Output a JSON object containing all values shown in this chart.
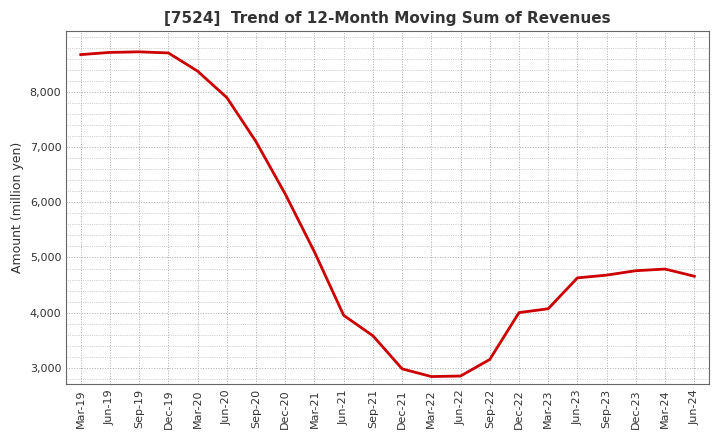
{
  "title": "[7524]  Trend of 12-Month Moving Sum of Revenues",
  "ylabel": "Amount (million yen)",
  "line_color": "#cc0000",
  "background_color": "#ffffff",
  "grid_color": "#aaaaaa",
  "x_labels": [
    "Mar-19",
    "Jun-19",
    "Sep-19",
    "Dec-19",
    "Mar-20",
    "Jun-20",
    "Sep-20",
    "Dec-20",
    "Mar-21",
    "Jun-21",
    "Sep-21",
    "Dec-21",
    "Mar-22",
    "Jun-22",
    "Sep-22",
    "Dec-22",
    "Mar-23",
    "Jun-23",
    "Sep-23",
    "Dec-23",
    "Mar-24",
    "Jun-24"
  ],
  "values": [
    8680,
    8720,
    8730,
    8710,
    8380,
    7900,
    7100,
    6150,
    5100,
    3950,
    3580,
    2980,
    2840,
    2850,
    3150,
    4000,
    4070,
    4630,
    4680,
    4760,
    4790,
    4660
  ],
  "ylim": [
    2700,
    9100
  ],
  "yticks": [
    3000,
    4000,
    5000,
    6000,
    7000,
    8000
  ],
  "title_fontsize": 11,
  "ylabel_fontsize": 9,
  "tick_fontsize": 8
}
